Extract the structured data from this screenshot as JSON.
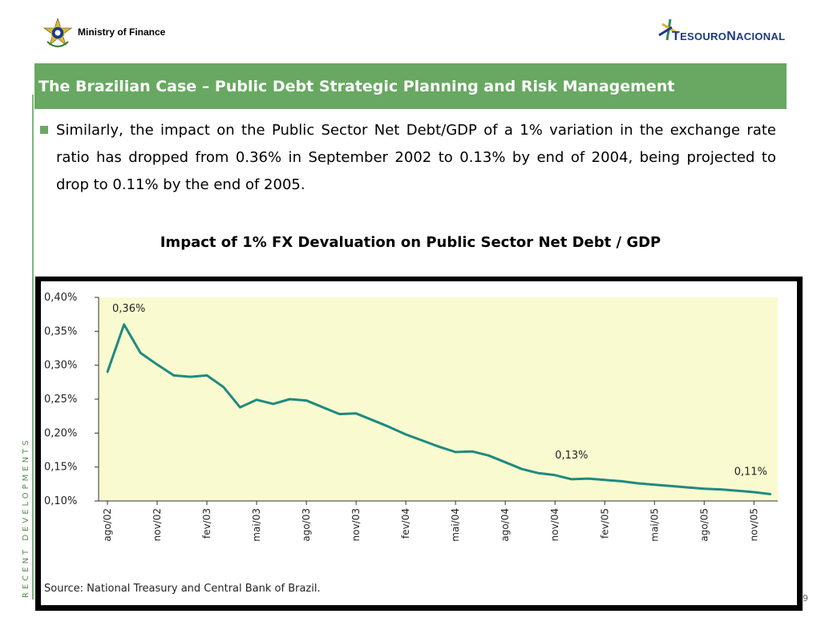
{
  "header": {
    "ministry": "Ministry of Finance",
    "tesouro_logo_text": "TesouroNacional",
    "tesouro_first": "T",
    "tesouro_rest1": "ESOURO",
    "tesouro_n": "N",
    "tesouro_rest2": "ACIONAL"
  },
  "title": "The Brazilian Case – Public Debt Strategic Planning and Risk Management",
  "bullet": "Similarly, the impact on the Public Sector Net Debt/GDP of a 1% variation in the exchange rate ratio has dropped from 0.36% in September 2002 to 0.13% by end of 2004, being projected to drop to 0.11% by the end of 2005.",
  "side_label": "RECENT DEVELOPMENTS",
  "page_number": "9",
  "colors": {
    "title_bar": "#68a862",
    "line": "#1f8a80",
    "plot_bg": "#fafad0"
  },
  "chart_data": {
    "type": "line",
    "title": "Impact of 1% FX Devaluation on Public Sector Net Debt / GDP",
    "source": "Source: National Treasury and Central Bank of Brazil.",
    "ylim": [
      0.1,
      0.4
    ],
    "y_ticks": [
      "0,10%",
      "0,15%",
      "0,20%",
      "0,25%",
      "0,30%",
      "0,35%",
      "0,40%"
    ],
    "x_ticks": [
      "ago/02",
      "nov/02",
      "fev/03",
      "mai/03",
      "ago/03",
      "nov/03",
      "fev/04",
      "mai/04",
      "ago/04",
      "nov/04",
      "fev/05",
      "mai/05",
      "ago/05",
      "nov/05"
    ],
    "categories": [
      "ago/02",
      "set/02",
      "out/02",
      "nov/02",
      "dez/02",
      "jan/03",
      "fev/03",
      "mar/03",
      "abr/03",
      "mai/03",
      "jun/03",
      "jul/03",
      "ago/03",
      "set/03",
      "out/03",
      "nov/03",
      "dez/03",
      "jan/04",
      "fev/04",
      "mar/04",
      "abr/04",
      "mai/04",
      "jun/04",
      "jul/04",
      "ago/04",
      "set/04",
      "out/04",
      "nov/04",
      "dez/04",
      "jan/05",
      "fev/05",
      "mar/05",
      "abr/05",
      "mai/05",
      "jun/05",
      "jul/05",
      "ago/05",
      "set/05",
      "out/05",
      "nov/05",
      "dez/05"
    ],
    "series": [
      {
        "values": [
          0.29,
          0.36,
          0.318,
          0.301,
          0.285,
          0.283,
          0.285,
          0.268,
          0.238,
          0.249,
          0.243,
          0.25,
          0.248,
          0.238,
          0.228,
          0.229,
          0.219,
          0.209,
          0.198,
          0.189,
          0.18,
          0.172,
          0.173,
          0.167,
          0.157,
          0.147,
          0.141,
          0.138,
          0.132,
          0.133,
          0.131,
          0.129,
          0.126,
          0.124,
          0.122,
          0.12,
          0.118,
          0.117,
          0.115,
          0.113,
          0.11
        ]
      }
    ],
    "annotations": [
      {
        "text": "0,36%",
        "at_index": 1
      },
      {
        "text": "0,13%",
        "at_index": 28
      },
      {
        "text": "0,11%",
        "at_index": 40
      }
    ],
    "grid": false
  }
}
